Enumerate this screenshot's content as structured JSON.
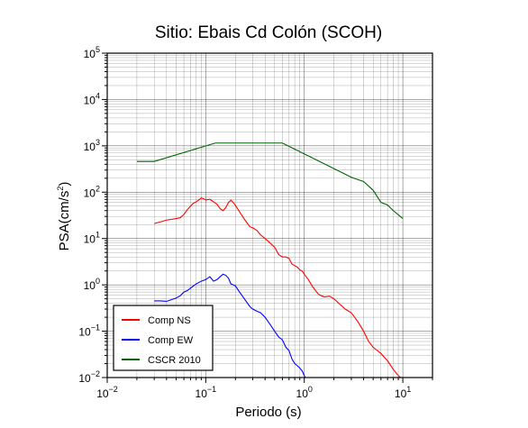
{
  "chart_data": {
    "type": "line",
    "title": "Sitio: Ebais Cd Colón (SCOH)",
    "xlabel": "Periodo (s)",
    "ylabel_main": "PSA(cm/s",
    "ylabel_sup": "2",
    "ylabel_close": ")",
    "xscale": "log",
    "yscale": "log",
    "xlim": [
      0.01,
      20
    ],
    "ylim": [
      0.01,
      100000
    ],
    "grid": true,
    "legend_position": "bottom-left",
    "x_ticks": [
      {
        "base": "10",
        "exp": "−2",
        "value": 0.01
      },
      {
        "base": "10",
        "exp": "−1",
        "value": 0.1
      },
      {
        "base": "10",
        "exp": "0",
        "value": 1
      },
      {
        "base": "10",
        "exp": "1",
        "value": 10
      }
    ],
    "y_ticks": [
      {
        "base": "10",
        "exp": "−2",
        "value": 0.01
      },
      {
        "base": "10",
        "exp": "−1",
        "value": 0.1
      },
      {
        "base": "10",
        "exp": "0",
        "value": 1
      },
      {
        "base": "10",
        "exp": "1",
        "value": 10
      },
      {
        "base": "10",
        "exp": "2",
        "value": 100
      },
      {
        "base": "10",
        "exp": "3",
        "value": 1000
      },
      {
        "base": "10",
        "exp": "4",
        "value": 10000
      },
      {
        "base": "10",
        "exp": "5",
        "value": 100000
      }
    ],
    "series": [
      {
        "name": "Comp NS",
        "color": "#ff0000",
        "points": [
          [
            0.03,
            21
          ],
          [
            0.035,
            23
          ],
          [
            0.04,
            25
          ],
          [
            0.045,
            26
          ],
          [
            0.05,
            27
          ],
          [
            0.055,
            28
          ],
          [
            0.06,
            33
          ],
          [
            0.065,
            42
          ],
          [
            0.07,
            50
          ],
          [
            0.075,
            58
          ],
          [
            0.08,
            62
          ],
          [
            0.085,
            68
          ],
          [
            0.09,
            75
          ],
          [
            0.095,
            72
          ],
          [
            0.1,
            68
          ],
          [
            0.11,
            70
          ],
          [
            0.12,
            62
          ],
          [
            0.13,
            55
          ],
          [
            0.14,
            44
          ],
          [
            0.15,
            40
          ],
          [
            0.16,
            47
          ],
          [
            0.17,
            60
          ],
          [
            0.18,
            67
          ],
          [
            0.19,
            60
          ],
          [
            0.2,
            52
          ],
          [
            0.22,
            38
          ],
          [
            0.25,
            25
          ],
          [
            0.28,
            18
          ],
          [
            0.3,
            17
          ],
          [
            0.33,
            15
          ],
          [
            0.36,
            12
          ],
          [
            0.4,
            10
          ],
          [
            0.45,
            8
          ],
          [
            0.5,
            6.5
          ],
          [
            0.55,
            4.5
          ],
          [
            0.6,
            4
          ],
          [
            0.65,
            4
          ],
          [
            0.7,
            3.7
          ],
          [
            0.75,
            2.8
          ],
          [
            0.8,
            2.6
          ],
          [
            0.85,
            2.4
          ],
          [
            0.9,
            2.1
          ],
          [
            0.95,
            2.0
          ],
          [
            1.0,
            1.7
          ],
          [
            1.1,
            1.3
          ],
          [
            1.2,
            0.95
          ],
          [
            1.3,
            0.75
          ],
          [
            1.4,
            0.62
          ],
          [
            1.5,
            0.58
          ],
          [
            1.6,
            0.55
          ],
          [
            1.8,
            0.57
          ],
          [
            2.0,
            0.5
          ],
          [
            2.3,
            0.38
          ],
          [
            2.6,
            0.3
          ],
          [
            3.0,
            0.25
          ],
          [
            3.5,
            0.16
          ],
          [
            4.0,
            0.1
          ],
          [
            4.5,
            0.06
          ],
          [
            5.0,
            0.045
          ],
          [
            6.0,
            0.033
          ],
          [
            7.0,
            0.023
          ],
          [
            8.0,
            0.015
          ],
          [
            9.0,
            0.011
          ],
          [
            10.0,
            0.009
          ]
        ]
      },
      {
        "name": "Comp EW",
        "color": "#0000ff",
        "points": [
          [
            0.03,
            0.45
          ],
          [
            0.035,
            0.45
          ],
          [
            0.04,
            0.44
          ],
          [
            0.045,
            0.48
          ],
          [
            0.05,
            0.52
          ],
          [
            0.055,
            0.58
          ],
          [
            0.06,
            0.7
          ],
          [
            0.065,
            0.75
          ],
          [
            0.07,
            0.85
          ],
          [
            0.075,
            0.95
          ],
          [
            0.08,
            1.05
          ],
          [
            0.09,
            1.2
          ],
          [
            0.1,
            1.3
          ],
          [
            0.11,
            1.5
          ],
          [
            0.12,
            1.2
          ],
          [
            0.13,
            1.3
          ],
          [
            0.14,
            1.5
          ],
          [
            0.15,
            1.7
          ],
          [
            0.16,
            1.6
          ],
          [
            0.17,
            1.4
          ],
          [
            0.18,
            1.05
          ],
          [
            0.2,
            0.95
          ],
          [
            0.22,
            0.7
          ],
          [
            0.25,
            0.48
          ],
          [
            0.28,
            0.34
          ],
          [
            0.3,
            0.3
          ],
          [
            0.33,
            0.27
          ],
          [
            0.36,
            0.25
          ],
          [
            0.4,
            0.2
          ],
          [
            0.45,
            0.14
          ],
          [
            0.5,
            0.1
          ],
          [
            0.55,
            0.075
          ],
          [
            0.6,
            0.065
          ],
          [
            0.65,
            0.045
          ],
          [
            0.7,
            0.038
          ],
          [
            0.75,
            0.025
          ],
          [
            0.8,
            0.02
          ],
          [
            0.85,
            0.018
          ],
          [
            0.9,
            0.016
          ],
          [
            0.95,
            0.014
          ],
          [
            1.0,
            0.011
          ],
          [
            1.05,
            0.009
          ]
        ]
      },
      {
        "name": "CSCR 2010",
        "color": "#006400",
        "points": [
          [
            0.02,
            460
          ],
          [
            0.03,
            460
          ],
          [
            0.125,
            1150
          ],
          [
            0.6,
            1150
          ],
          [
            3.0,
            210
          ],
          [
            4.0,
            170
          ],
          [
            5.0,
            110
          ],
          [
            6.0,
            60
          ],
          [
            7.0,
            53
          ],
          [
            8.0,
            40
          ],
          [
            10.0,
            27
          ]
        ]
      }
    ]
  }
}
